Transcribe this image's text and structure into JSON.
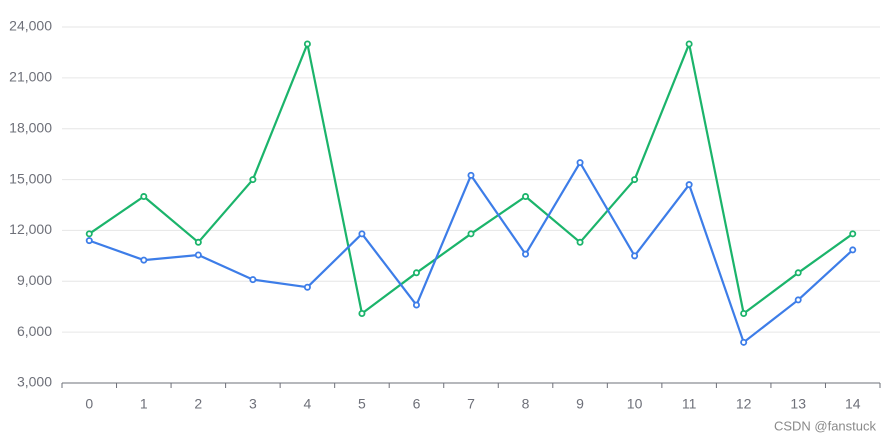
{
  "chart_data": {
    "type": "line",
    "categories": [
      "0",
      "1",
      "2",
      "3",
      "4",
      "5",
      "6",
      "7",
      "8",
      "9",
      "10",
      "11",
      "12",
      "13",
      "14"
    ],
    "series": [
      {
        "color": "#1bb46b",
        "values": [
          11800,
          14000,
          11300,
          15000,
          23000,
          7100,
          9500,
          11800,
          14000,
          11300,
          15000,
          23000,
          7100,
          9500,
          11800
        ]
      },
      {
        "color": "#3d7de8",
        "values": [
          11400,
          10250,
          10550,
          9100,
          8650,
          11800,
          7600,
          15250,
          10600,
          16000,
          10500,
          14700,
          5400,
          7900,
          10850
        ]
      }
    ],
    "ylim": [
      3000,
      24000
    ],
    "yticks": [
      {
        "value": 3000,
        "label": "3,000"
      },
      {
        "value": 6000,
        "label": "6,000"
      },
      {
        "value": 9000,
        "label": "9,000"
      },
      {
        "value": 12000,
        "label": "12,000"
      },
      {
        "value": 15000,
        "label": "15,000"
      },
      {
        "value": 18000,
        "label": "18,000"
      },
      {
        "value": 21000,
        "label": "21,000"
      },
      {
        "value": 24000,
        "label": "24,000"
      }
    ],
    "grid": true,
    "watermark": "CSDN @fanstuck"
  }
}
